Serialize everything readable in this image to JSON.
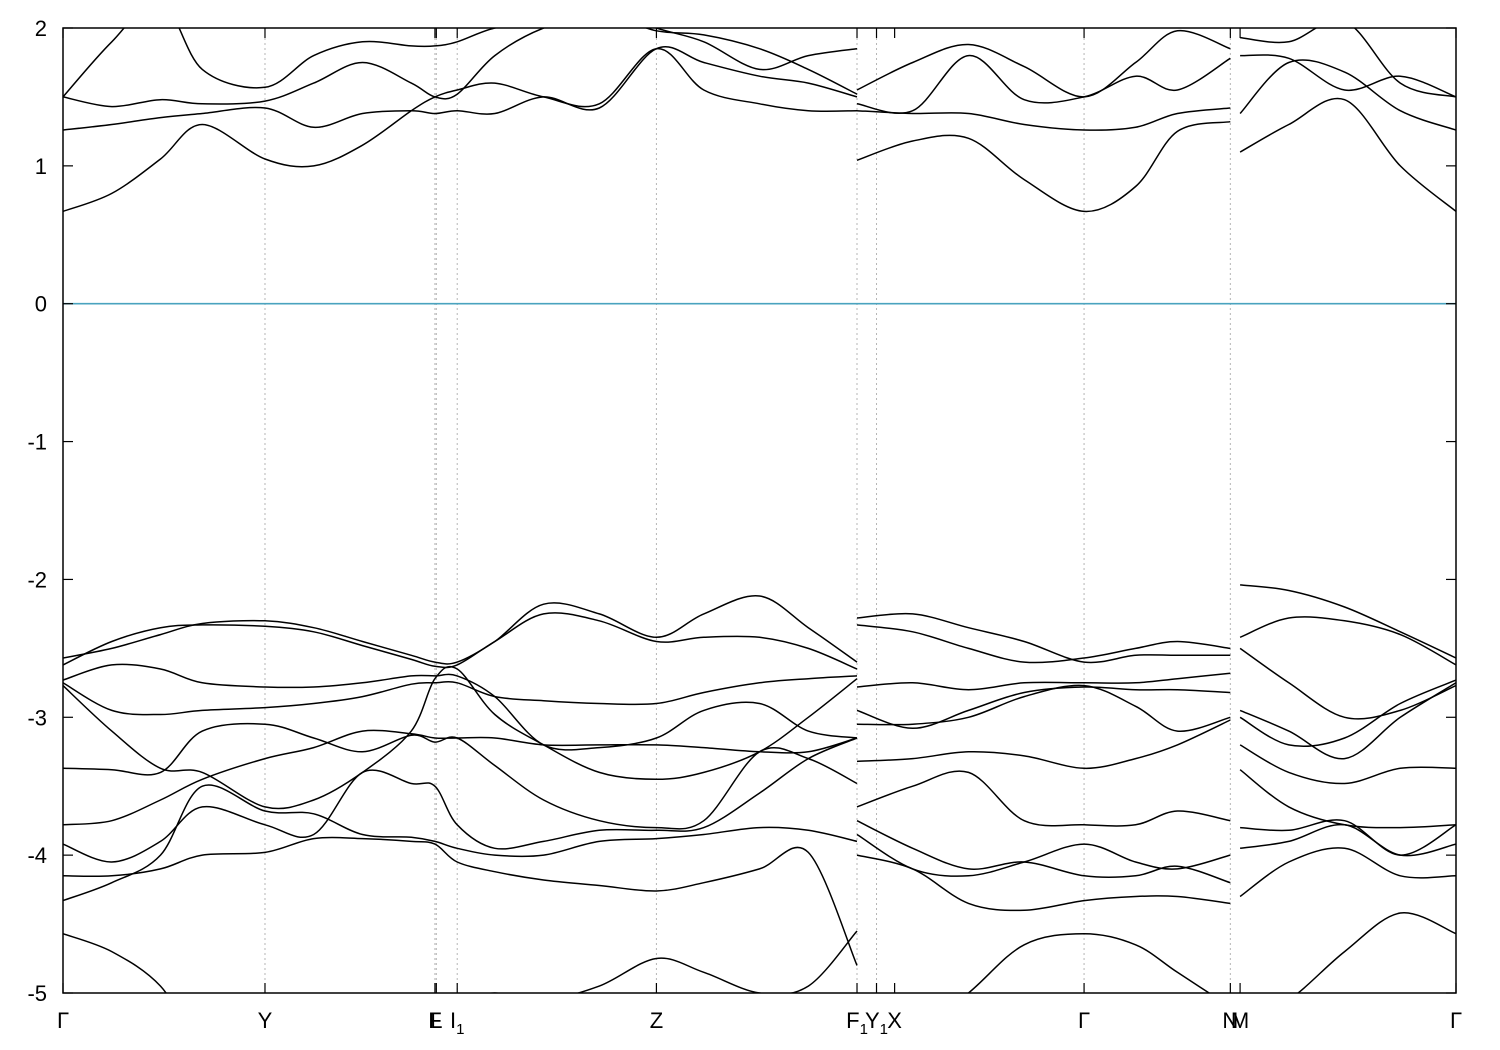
{
  "chart_data": {
    "type": "line",
    "title": "",
    "xlabel": "",
    "ylabel": "",
    "ylim": [
      -5,
      2
    ],
    "xlim": [
      0,
      1
    ],
    "grid": "vertical dotted lines at high-symmetry points",
    "fermi_level": {
      "y": 0,
      "color": "#4aa3bf"
    },
    "band_color": "#000000",
    "yticks": [
      {
        "value": 2,
        "label": "2"
      },
      {
        "value": 1,
        "label": "1"
      },
      {
        "value": 0,
        "label": "0"
      },
      {
        "value": -1,
        "label": "-1"
      },
      {
        "value": -2,
        "label": "-2"
      },
      {
        "value": -3,
        "label": "-3"
      },
      {
        "value": -4,
        "label": "-4"
      },
      {
        "value": -5,
        "label": "-5"
      }
    ],
    "xticks": [
      {
        "x": 0.0,
        "label": "Γ",
        "sub": ""
      },
      {
        "x": 0.145,
        "label": "Y",
        "sub": ""
      },
      {
        "x": 0.267,
        "label": "F",
        "sub": ""
      },
      {
        "x": 0.268,
        "label": "L",
        "sub": ""
      },
      {
        "x": 0.283,
        "label": "I",
        "sub": "1"
      },
      {
        "x": 0.426,
        "label": "Z",
        "sub": ""
      },
      {
        "x": 0.57,
        "label": "F",
        "sub": "1"
      },
      {
        "x": 0.584,
        "label": "Y",
        "sub": "1"
      },
      {
        "x": 0.597,
        "label": "X",
        "sub": ""
      },
      {
        "x": 0.733,
        "label": "Γ",
        "sub": ""
      },
      {
        "x": 0.838,
        "label": "N",
        "sub": ""
      },
      {
        "x": 0.845,
        "label": "M",
        "sub": ""
      },
      {
        "x": 1.0,
        "label": "Γ",
        "sub": ""
      }
    ],
    "vlines": [
      0.145,
      0.267,
      0.268,
      0.283,
      0.426,
      0.57,
      0.584,
      0.733,
      0.838
    ],
    "segments": [
      {
        "x": [
          0.0,
          0.035,
          0.07,
          0.1,
          0.145,
          0.18,
          0.215,
          0.25,
          0.267,
          0.283,
          0.31,
          0.345,
          0.385,
          0.426,
          0.46,
          0.5,
          0.535,
          0.57
        ],
        "bands": [
          [
            -4.57,
            -4.7,
            -4.95,
            -5.4,
            -5.6,
            -5.5,
            -5.3,
            -5.1,
            -5.05,
            -5.05,
            -5.0,
            -5.05,
            -4.95,
            -4.75,
            -4.85,
            -5.0,
            -4.95,
            -4.55
          ],
          [
            -4.33,
            -4.2,
            -4.0,
            -3.5,
            -3.68,
            -3.7,
            -3.85,
            -3.87,
            -3.9,
            -3.95,
            -4.0,
            -4.0,
            -3.9,
            -3.88,
            -3.85,
            -3.8,
            -3.82,
            -3.9
          ],
          [
            -4.15,
            -4.15,
            -4.1,
            -4.0,
            -3.98,
            -3.88,
            -3.88,
            -3.9,
            -3.92,
            -4.05,
            -4.12,
            -4.18,
            -4.22,
            -4.26,
            -4.2,
            -4.1,
            -3.98,
            -4.8
          ],
          [
            -3.92,
            -4.05,
            -3.9,
            -3.65,
            -3.78,
            -3.85,
            -3.4,
            -3.48,
            -3.5,
            -3.78,
            -3.95,
            -3.9,
            -3.82,
            -3.82,
            -3.8,
            -3.55,
            -3.3,
            -3.15
          ],
          [
            -3.78,
            -3.75,
            -3.6,
            -3.45,
            -3.3,
            -3.22,
            -3.1,
            -3.12,
            -3.15,
            -3.15,
            -3.15,
            -3.2,
            -3.2,
            -3.2,
            -3.22,
            -3.25,
            -3.25,
            -3.15
          ],
          [
            -3.37,
            -3.38,
            -3.4,
            -3.1,
            -3.05,
            -3.15,
            -3.25,
            -3.13,
            -3.18,
            -3.15,
            -3.35,
            -3.6,
            -3.75,
            -3.8,
            -3.75,
            -3.25,
            -3.3,
            -3.48
          ],
          [
            -2.75,
            -2.95,
            -2.98,
            -2.95,
            -2.93,
            -2.9,
            -2.85,
            -2.76,
            -2.75,
            -2.75,
            -2.85,
            -2.88,
            -2.9,
            -2.9,
            -2.82,
            -2.75,
            -2.72,
            -2.7
          ],
          [
            -2.77,
            -3.1,
            -3.37,
            -3.4,
            -3.65,
            -3.6,
            -3.4,
            -3.1,
            -2.72,
            -2.65,
            -2.98,
            -3.2,
            -3.4,
            -3.45,
            -3.4,
            -3.25,
            -3.0,
            -2.72
          ],
          [
            -2.73,
            -2.62,
            -2.65,
            -2.75,
            -2.78,
            -2.78,
            -2.75,
            -2.7,
            -2.7,
            -2.7,
            -2.85,
            -3.2,
            -3.22,
            -3.15,
            -2.95,
            -2.9,
            -3.1,
            -3.15
          ],
          [
            -2.62,
            -2.45,
            -2.35,
            -2.33,
            -2.34,
            -2.38,
            -2.48,
            -2.58,
            -2.63,
            -2.62,
            -2.45,
            -2.25,
            -2.3,
            -2.45,
            -2.42,
            -2.42,
            -2.5,
            -2.65
          ],
          [
            -2.57,
            -2.5,
            -2.4,
            -2.32,
            -2.3,
            -2.35,
            -2.45,
            -2.55,
            -2.6,
            -2.6,
            -2.45,
            -2.18,
            -2.25,
            -2.42,
            -2.25,
            -2.12,
            -2.35,
            -2.6
          ],
          [
            0.67,
            0.8,
            1.05,
            1.3,
            1.05,
            1.0,
            1.15,
            1.4,
            1.5,
            1.55,
            1.6,
            1.5,
            1.45,
            1.85,
            1.55,
            1.45,
            1.4,
            1.4
          ],
          [
            1.26,
            1.3,
            1.35,
            1.38,
            1.42,
            1.28,
            1.38,
            1.4,
            1.38,
            1.4,
            1.38,
            1.5,
            1.42,
            1.85,
            1.75,
            1.65,
            1.6,
            1.5
          ],
          [
            1.5,
            1.43,
            1.48,
            1.45,
            1.47,
            1.6,
            1.75,
            1.6,
            1.5,
            1.52,
            1.8,
            2.0,
            2.1,
            1.98,
            1.95,
            1.85,
            1.7,
            1.52
          ],
          [
            1.5,
            1.9,
            2.2,
            1.7,
            1.57,
            1.8,
            1.9,
            1.87,
            1.87,
            1.9,
            2.0,
            2.05,
            2.15,
            2.0,
            1.9,
            1.7,
            1.8,
            1.85
          ]
        ]
      },
      {
        "x": [
          0.57,
          0.61,
          0.65,
          0.69,
          0.733,
          0.77,
          0.8,
          0.838
        ],
        "bands": [
          [
            -5.4,
            -5.3,
            -5.0,
            -4.65,
            -4.57,
            -4.65,
            -4.85,
            -5.1
          ],
          [
            -4.0,
            -4.1,
            -4.35,
            -4.4,
            -4.33,
            -4.3,
            -4.3,
            -4.35
          ],
          [
            -3.75,
            -3.95,
            -4.1,
            -4.05,
            -4.15,
            -4.15,
            -4.08,
            -4.2
          ],
          [
            -3.85,
            -4.1,
            -4.15,
            -4.05,
            -3.92,
            -4.05,
            -4.1,
            -4.0
          ],
          [
            -3.65,
            -3.5,
            -3.4,
            -3.75,
            -3.78,
            -3.78,
            -3.68,
            -3.75
          ],
          [
            -3.32,
            -3.3,
            -3.25,
            -3.28,
            -3.37,
            -3.3,
            -3.2,
            -3.02
          ],
          [
            -3.05,
            -3.05,
            -3.0,
            -2.85,
            -2.77,
            -2.92,
            -3.1,
            -3.0
          ],
          [
            -2.95,
            -3.08,
            -2.95,
            -2.82,
            -2.78,
            -2.8,
            -2.8,
            -2.82
          ],
          [
            -2.78,
            -2.75,
            -2.8,
            -2.75,
            -2.75,
            -2.75,
            -2.72,
            -2.68
          ],
          [
            -2.33,
            -2.38,
            -2.5,
            -2.6,
            -2.57,
            -2.5,
            -2.45,
            -2.5
          ],
          [
            -2.28,
            -2.25,
            -2.35,
            -2.45,
            -2.6,
            -2.55,
            -2.55,
            -2.55
          ],
          [
            1.04,
            1.18,
            1.2,
            0.9,
            0.67,
            0.85,
            1.25,
            1.32
          ],
          [
            1.4,
            1.38,
            1.38,
            1.3,
            1.26,
            1.28,
            1.38,
            1.42
          ],
          [
            1.45,
            1.4,
            1.8,
            1.48,
            1.5,
            1.65,
            1.55,
            1.78
          ],
          [
            1.55,
            1.75,
            1.88,
            1.72,
            1.5,
            1.75,
            1.98,
            1.85
          ]
        ]
      },
      {
        "x": [
          0.845,
          0.88,
          0.92,
          0.96,
          1.0
        ],
        "bands": [
          [
            -5.2,
            -5.05,
            -4.7,
            -4.42,
            -4.57
          ],
          [
            -4.3,
            -4.05,
            -3.95,
            -4.15,
            -4.15
          ],
          [
            -3.95,
            -3.9,
            -3.78,
            -4.0,
            -3.92
          ],
          [
            -3.8,
            -3.82,
            -3.75,
            -4.0,
            -3.78
          ],
          [
            -3.38,
            -3.65,
            -3.78,
            -3.8,
            -3.78
          ],
          [
            -3.2,
            -3.4,
            -3.48,
            -3.37,
            -3.37
          ],
          [
            -2.95,
            -3.1,
            -3.3,
            -3.0,
            -2.75
          ],
          [
            -3.0,
            -3.2,
            -3.15,
            -2.9,
            -2.73
          ],
          [
            -2.5,
            -2.75,
            -3.0,
            -2.95,
            -2.77
          ],
          [
            -2.42,
            -2.28,
            -2.3,
            -2.4,
            -2.62
          ],
          [
            -2.04,
            -2.08,
            -2.2,
            -2.38,
            -2.57
          ],
          [
            1.1,
            1.3,
            1.48,
            1.0,
            0.67
          ],
          [
            1.38,
            1.75,
            1.68,
            1.4,
            1.26
          ],
          [
            1.8,
            1.78,
            1.55,
            1.65,
            1.5
          ],
          [
            1.93,
            1.9,
            2.05,
            1.6,
            1.5
          ]
        ]
      }
    ]
  }
}
